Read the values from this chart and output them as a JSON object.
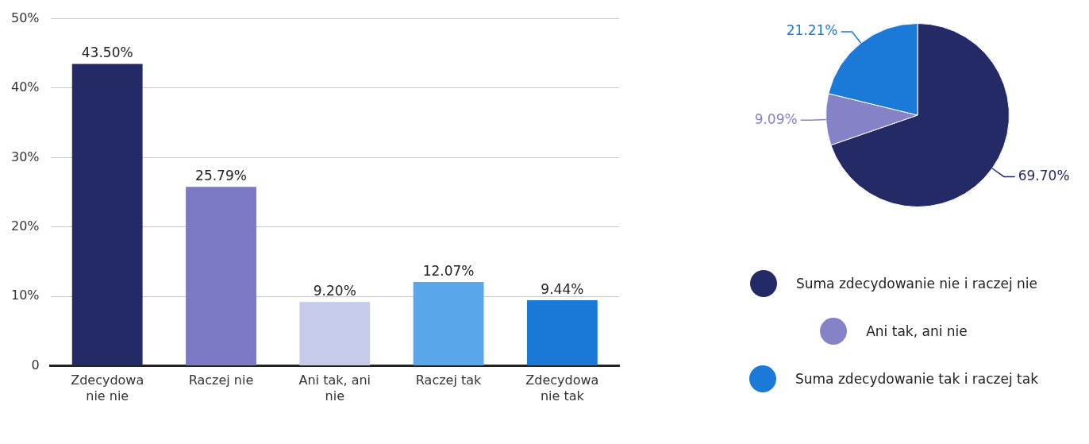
{
  "chart_data": [
    {
      "type": "bar",
      "categories": [
        "Zdecydowanie nie",
        "Raczej nie",
        "Ani tak, ani nie",
        "Raczej tak",
        "Zdecydowanie tak"
      ],
      "values": [
        43.5,
        25.79,
        9.2,
        12.07,
        9.44
      ],
      "colors": [
        "#232a66",
        "#7b78c4",
        "#c5cbe8",
        "#5aa6ea",
        "#1a78d6"
      ],
      "value_labels": [
        "43.50%",
        "25.79%",
        "9.20%",
        "12.07%",
        "9.44%"
      ],
      "ylim": [
        0,
        50
      ],
      "yticks": [
        {
          "value": 0,
          "label": "0"
        },
        {
          "value": 10,
          "label": "10%"
        },
        {
          "value": 20,
          "label": "20%"
        },
        {
          "value": 30,
          "label": "30%"
        },
        {
          "value": 40,
          "label": "40%"
        },
        {
          "value": 50,
          "label": "50%"
        }
      ],
      "grid": "y",
      "legend": false
    },
    {
      "type": "pie",
      "categories": [
        "Suma zdecydowanie nie i raczej nie",
        "Ani tak, ani nie",
        "Suma zdecydowanie tak i raczej tak"
      ],
      "values": [
        69.7,
        9.09,
        21.21
      ],
      "colors": [
        "#232a66",
        "#8582c8",
        "#1b7ad8"
      ],
      "value_labels": [
        "69.70%",
        "9.09%",
        "21.21%"
      ],
      "legend": "bottom"
    }
  ]
}
